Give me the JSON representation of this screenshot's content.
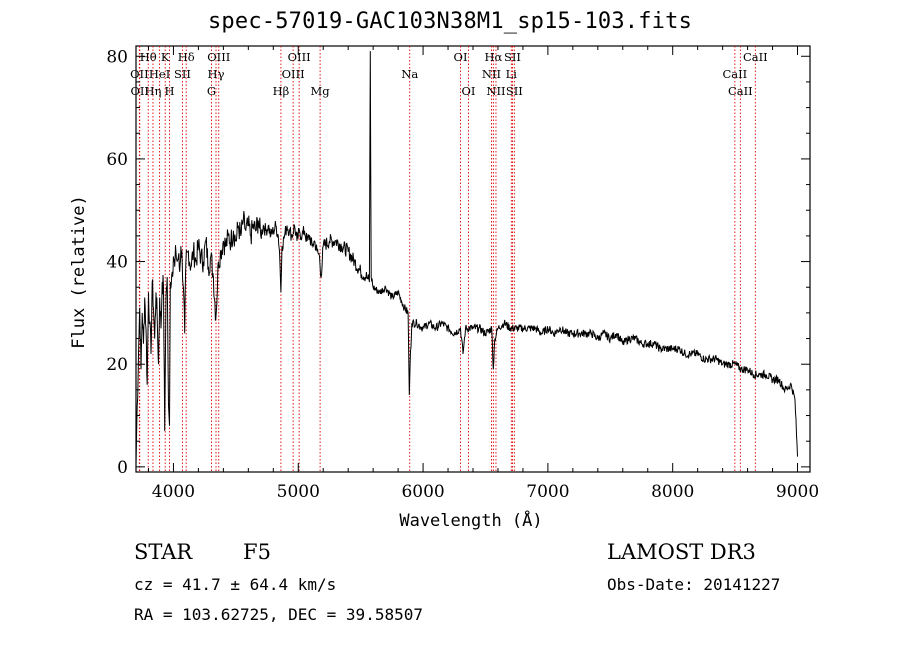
{
  "chart_data": {
    "type": "line",
    "title": "spec-57019-GAC103N38M1_sp15-103.fits",
    "xlabel": "Wavelength (Å)",
    "ylabel": "Flux (relative)",
    "xlim": [
      3700,
      9100
    ],
    "ylim": [
      -1,
      82
    ],
    "xticks": [
      4000,
      5000,
      6000,
      7000,
      8000,
      9000
    ],
    "yticks": [
      0,
      20,
      40,
      60,
      80
    ],
    "series": [
      {
        "name": "flux",
        "points": [
          [
            3700,
            0.5
          ],
          [
            3710,
            12
          ],
          [
            3720,
            22
          ],
          [
            3730,
            31
          ],
          [
            3740,
            19
          ],
          [
            3750,
            30
          ],
          [
            3760,
            24
          ],
          [
            3770,
            33
          ],
          [
            3780,
            27
          ],
          [
            3790,
            16
          ],
          [
            3800,
            34
          ],
          [
            3810,
            28
          ],
          [
            3820,
            22
          ],
          [
            3830,
            36
          ],
          [
            3840,
            31
          ],
          [
            3850,
            25
          ],
          [
            3860,
            34
          ],
          [
            3870,
            29
          ],
          [
            3880,
            20
          ],
          [
            3890,
            33
          ],
          [
            3900,
            27
          ],
          [
            3910,
            36
          ],
          [
            3920,
            35
          ],
          [
            3930,
            7
          ],
          [
            3940,
            33
          ],
          [
            3950,
            37
          ],
          [
            3960,
            12
          ],
          [
            3968,
            8
          ],
          [
            3975,
            36
          ],
          [
            3990,
            38
          ],
          [
            4000,
            41
          ],
          [
            4010,
            39
          ],
          [
            4020,
            42
          ],
          [
            4030,
            40
          ],
          [
            4040,
            41
          ],
          [
            4050,
            38
          ],
          [
            4060,
            43
          ],
          [
            4070,
            40
          ],
          [
            4080,
            35
          ],
          [
            4090,
            26
          ],
          [
            4100,
            40
          ],
          [
            4120,
            42
          ],
          [
            4140,
            39
          ],
          [
            4160,
            42
          ],
          [
            4180,
            40
          ],
          [
            4200,
            43
          ],
          [
            4220,
            41
          ],
          [
            4240,
            40
          ],
          [
            4260,
            44
          ],
          [
            4280,
            39
          ],
          [
            4300,
            41
          ],
          [
            4320,
            37
          ],
          [
            4340,
            29
          ],
          [
            4360,
            40
          ],
          [
            4380,
            42
          ],
          [
            4400,
            44
          ],
          [
            4420,
            43
          ],
          [
            4440,
            45
          ],
          [
            4460,
            44
          ],
          [
            4480,
            46
          ],
          [
            4500,
            44
          ],
          [
            4520,
            47
          ],
          [
            4540,
            45
          ],
          [
            4560,
            48
          ],
          [
            4580,
            46
          ],
          [
            4600,
            47
          ],
          [
            4620,
            45
          ],
          [
            4640,
            47
          ],
          [
            4660,
            46
          ],
          [
            4680,
            48
          ],
          [
            4700,
            45
          ],
          [
            4720,
            47
          ],
          [
            4740,
            46
          ],
          [
            4760,
            47
          ],
          [
            4780,
            45
          ],
          [
            4800,
            46
          ],
          [
            4820,
            47
          ],
          [
            4840,
            45
          ],
          [
            4850,
            42
          ],
          [
            4861,
            34
          ],
          [
            4870,
            43
          ],
          [
            4890,
            45
          ],
          [
            4910,
            47
          ],
          [
            4930,
            46
          ],
          [
            4950,
            45
          ],
          [
            4970,
            47
          ],
          [
            4990,
            44
          ],
          [
            5010,
            46
          ],
          [
            5030,
            45
          ],
          [
            5050,
            46
          ],
          [
            5070,
            44
          ],
          [
            5090,
            45
          ],
          [
            5110,
            43
          ],
          [
            5130,
            44
          ],
          [
            5150,
            42
          ],
          [
            5170,
            41
          ],
          [
            5183,
            37
          ],
          [
            5200,
            43
          ],
          [
            5250,
            44
          ],
          [
            5300,
            44
          ],
          [
            5350,
            43
          ],
          [
            5400,
            42
          ],
          [
            5450,
            40
          ],
          [
            5500,
            38
          ],
          [
            5550,
            37
          ],
          [
            5570,
            36
          ],
          [
            5577,
            81
          ],
          [
            5584,
            37
          ],
          [
            5600,
            35
          ],
          [
            5650,
            34
          ],
          [
            5700,
            35
          ],
          [
            5750,
            33
          ],
          [
            5800,
            34
          ],
          [
            5850,
            31
          ],
          [
            5880,
            30
          ],
          [
            5890,
            14
          ],
          [
            5896,
            20
          ],
          [
            5910,
            28
          ],
          [
            5950,
            28
          ],
          [
            6000,
            27
          ],
          [
            6050,
            28
          ],
          [
            6100,
            27
          ],
          [
            6150,
            28
          ],
          [
            6200,
            27
          ],
          [
            6250,
            26
          ],
          [
            6300,
            27
          ],
          [
            6320,
            22
          ],
          [
            6340,
            27
          ],
          [
            6400,
            27
          ],
          [
            6450,
            27
          ],
          [
            6500,
            26
          ],
          [
            6550,
            27
          ],
          [
            6563,
            19
          ],
          [
            6575,
            25
          ],
          [
            6600,
            27
          ],
          [
            6650,
            28
          ],
          [
            6700,
            27
          ],
          [
            6750,
            27
          ],
          [
            6800,
            27
          ],
          [
            6850,
            27
          ],
          [
            6900,
            27
          ],
          [
            6950,
            26
          ],
          [
            7000,
            27
          ],
          [
            7050,
            26
          ],
          [
            7100,
            27
          ],
          [
            7150,
            26
          ],
          [
            7200,
            26
          ],
          [
            7250,
            26
          ],
          [
            7300,
            26
          ],
          [
            7350,
            26
          ],
          [
            7400,
            25
          ],
          [
            7450,
            26
          ],
          [
            7500,
            25
          ],
          [
            7550,
            26
          ],
          [
            7600,
            24
          ],
          [
            7650,
            25
          ],
          [
            7700,
            25
          ],
          [
            7750,
            24
          ],
          [
            7800,
            24
          ],
          [
            7850,
            24
          ],
          [
            7900,
            23
          ],
          [
            7950,
            23
          ],
          [
            8000,
            23
          ],
          [
            8050,
            23
          ],
          [
            8100,
            22
          ],
          [
            8150,
            22
          ],
          [
            8200,
            22
          ],
          [
            8250,
            21
          ],
          [
            8300,
            21
          ],
          [
            8350,
            21
          ],
          [
            8400,
            20
          ],
          [
            8450,
            20
          ],
          [
            8500,
            20
          ],
          [
            8550,
            19
          ],
          [
            8600,
            19
          ],
          [
            8650,
            18
          ],
          [
            8700,
            18
          ],
          [
            8750,
            18
          ],
          [
            8800,
            17
          ],
          [
            8850,
            17
          ],
          [
            8900,
            15
          ],
          [
            8950,
            16
          ],
          [
            8980,
            13
          ],
          [
            9000,
            2
          ]
        ]
      }
    ],
    "lines": [
      {
        "label": "Hθ",
        "x": 3798,
        "row": 0
      },
      {
        "label": "OII",
        "x": 3727,
        "row": 1
      },
      {
        "label": "OII",
        "x": 3730,
        "row": 2
      },
      {
        "label": "Hη",
        "x": 3836,
        "row": 2
      },
      {
        "label": "HeI",
        "x": 3889,
        "row": 1
      },
      {
        "label": "K",
        "x": 3934,
        "row": 0
      },
      {
        "label": "SII",
        "x": 4072,
        "row": 1
      },
      {
        "label": "H",
        "x": 3969,
        "row": 2
      },
      {
        "label": "Hδ",
        "x": 4102,
        "row": 0
      },
      {
        "label": "OIII",
        "x": 4363,
        "row": 0
      },
      {
        "label": "Hγ",
        "x": 4341,
        "row": 1
      },
      {
        "label": "G",
        "x": 4305,
        "row": 2
      },
      {
        "label": "OIII",
        "x": 5007,
        "row": 0
      },
      {
        "label": "OIII",
        "x": 4959,
        "row": 1
      },
      {
        "label": "Hβ",
        "x": 4861,
        "row": 2
      },
      {
        "label": "Mg",
        "x": 5175,
        "row": 2
      },
      {
        "label": "Na",
        "x": 5893,
        "row": 1
      },
      {
        "label": "OI",
        "x": 6300,
        "row": 0
      },
      {
        "label": "OI",
        "x": 6364,
        "row": 2
      },
      {
        "label": "Hα",
        "x": 6563,
        "row": 0
      },
      {
        "label": "NII",
        "x": 6548,
        "row": 1
      },
      {
        "label": "NII",
        "x": 6584,
        "row": 2
      },
      {
        "label": "SII",
        "x": 6716,
        "row": 0
      },
      {
        "label": "Li",
        "x": 6707,
        "row": 1
      },
      {
        "label": "SII",
        "x": 6731,
        "row": 2
      },
      {
        "label": "CaII",
        "x": 8662,
        "row": 0
      },
      {
        "label": "CaII",
        "x": 8498,
        "row": 1
      },
      {
        "label": "CaII",
        "x": 8542,
        "row": 2
      }
    ],
    "line_labels": [
      [
        "Hθ",
        "OII",
        "OIIHη",
        "K",
        "HeI",
        "H",
        "Hδ",
        "SII"
      ],
      [
        "OIII",
        "Hγ",
        "G"
      ],
      [
        "OIII",
        "OIII",
        "Hβ",
        "Mg"
      ],
      [
        "Na"
      ],
      [
        "OI",
        "OI"
      ],
      [
        "HαSII",
        "NII Li",
        "NIISII"
      ],
      [
        "CaII",
        "CaII",
        "CaII"
      ]
    ],
    "line_color": "#e00000",
    "trace_color": "#000000"
  },
  "info": {
    "object_class": "STAR",
    "subclass": "F5",
    "survey": "LAMOST DR3",
    "cz": "cz = 41.7 ± 64.4 km/s",
    "obs_date": "Obs-Date: 20141227",
    "coords": "RA = 103.62725, DEC =  39.58507"
  }
}
